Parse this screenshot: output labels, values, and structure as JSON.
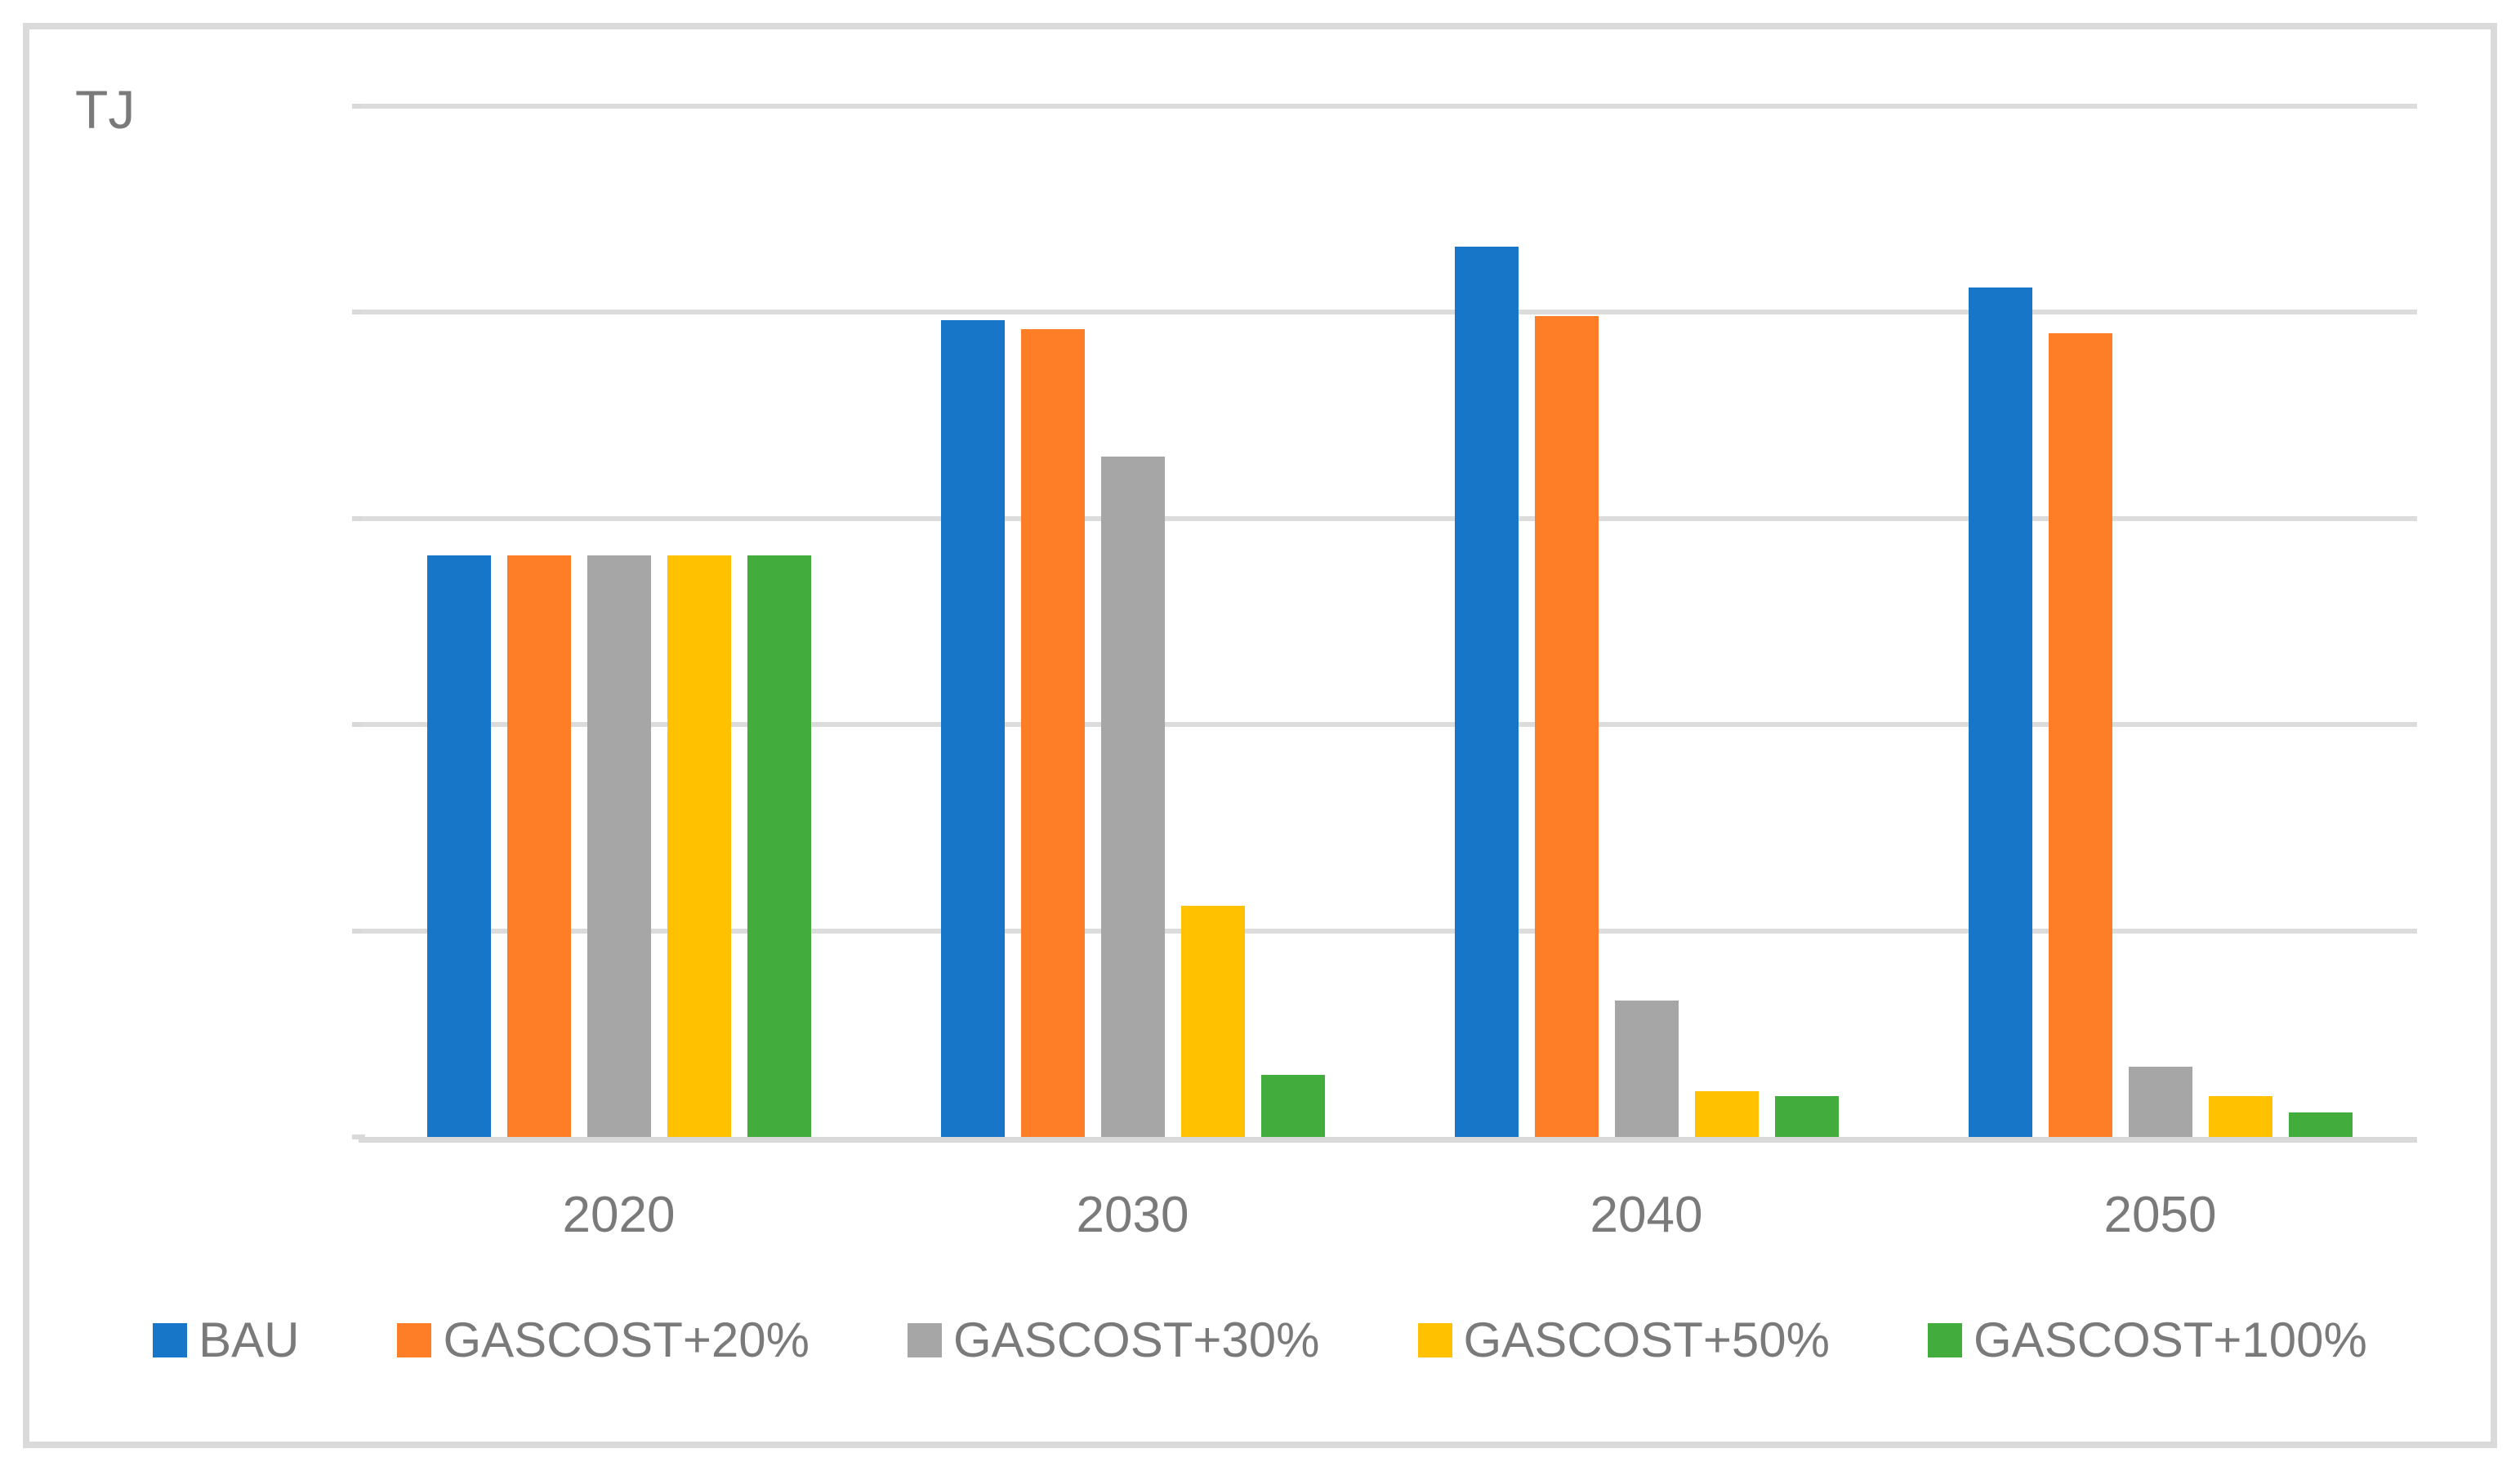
{
  "chart_data": {
    "type": "bar",
    "title": "",
    "unit_label": "TJ",
    "categories": [
      "2020",
      "2030",
      "2040",
      "2050"
    ],
    "series": [
      {
        "name": "BAU",
        "color": "#1876C9",
        "values": [
          141,
          198,
          216,
          206
        ]
      },
      {
        "name": "GASCOST+20%",
        "color": "#FD7E27",
        "values": [
          141,
          196,
          199,
          195
        ]
      },
      {
        "name": "GASCOST+30%",
        "color": "#A6A6A6",
        "values": [
          141,
          165,
          33,
          17
        ]
      },
      {
        "name": "GASCOST+50%",
        "color": "#FFC100",
        "values": [
          141,
          56,
          11,
          10
        ]
      },
      {
        "name": "GASCOST+100%",
        "color": "#42AD3C",
        "values": [
          141,
          15,
          10,
          6
        ]
      }
    ],
    "y_ticks": [
      0,
      50,
      100,
      150,
      200,
      250
    ],
    "ylim": [
      0,
      250
    ],
    "grid": true,
    "legend_position": "bottom",
    "colors": {
      "gridline": "#DCDCDC",
      "frame": "#DADADA",
      "axis_text": "#7A7A7A"
    }
  }
}
